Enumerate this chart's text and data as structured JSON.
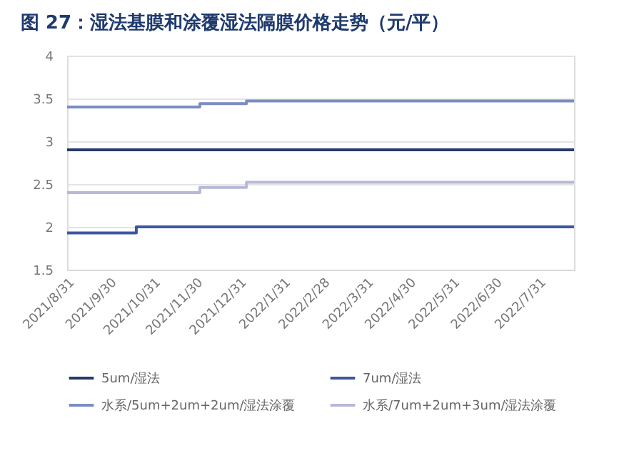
{
  "chart_data": {
    "type": "step",
    "title": "图 27：湿法基膜和涂覆湿法隔膜价格走势（元/平）",
    "series": [
      {
        "name": "5um/湿法",
        "color": "#26396b",
        "x": [
          "2021-08-31",
          "2022-08-25"
        ],
        "values": [
          2.9,
          2.9
        ]
      },
      {
        "name": "7um/湿法",
        "color": "#3d56a3",
        "x": [
          "2021-08-31",
          "2021-10-19",
          "2022-08-25"
        ],
        "values": [
          1.93,
          2.0,
          2.0
        ]
      },
      {
        "name": "水系/5um+2um+2um/湿法涂覆",
        "color": "#7b8cc2",
        "x": [
          "2021-08-31",
          "2021-12-03",
          "2022-01-05",
          "2022-08-25"
        ],
        "values": [
          3.4,
          3.44,
          3.47,
          3.47
        ]
      },
      {
        "name": "水系/7um+2um+3um/湿法涂覆",
        "color": "#b7b8d8",
        "x": [
          "2021-08-31",
          "2021-12-03",
          "2022-01-05",
          "2022-08-25"
        ],
        "values": [
          2.4,
          2.46,
          2.52,
          2.52
        ]
      }
    ],
    "xlim": [
      "2021-08-31",
      "2022-08-25"
    ],
    "xticks": [
      {
        "value": "2021-08-31",
        "label": "2021/8/31"
      },
      {
        "value": "2021-09-30",
        "label": "2021/9/30"
      },
      {
        "value": "2021-10-31",
        "label": "2021/10/31"
      },
      {
        "value": "2021-11-30",
        "label": "2021/11/30"
      },
      {
        "value": "2021-12-31",
        "label": "2021/12/31"
      },
      {
        "value": "2022-01-31",
        "label": "2022/1/31"
      },
      {
        "value": "2022-02-28",
        "label": "2022/2/28"
      },
      {
        "value": "2022-03-31",
        "label": "2022/3/31"
      },
      {
        "value": "2022-04-30",
        "label": "2022/4/30"
      },
      {
        "value": "2022-05-31",
        "label": "2022/5/31"
      },
      {
        "value": "2022-06-30",
        "label": "2022/6/30"
      },
      {
        "value": "2022-07-31",
        "label": "2022/7/31"
      }
    ],
    "ylim": [
      1.5,
      4
    ],
    "yticks": [
      1.5,
      2,
      2.5,
      3,
      3.5,
      4
    ],
    "grid": "y",
    "legend": "bottom",
    "line_style": "solid",
    "marker": "none"
  }
}
